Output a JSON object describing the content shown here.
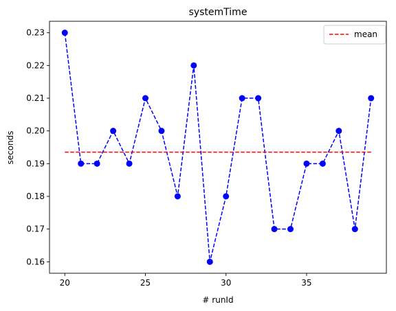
{
  "chart_data": {
    "type": "line",
    "title": "systemTime",
    "xlabel": "# runId",
    "ylabel": "seconds",
    "xlim": [
      19.05,
      39.95
    ],
    "ylim": [
      0.1565,
      0.2335
    ],
    "xticks": [
      20,
      25,
      30,
      35
    ],
    "xtick_labels": [
      "20",
      "25",
      "30",
      "35"
    ],
    "yticks": [
      0.16,
      0.17,
      0.18,
      0.19,
      0.2,
      0.21,
      0.22,
      0.23
    ],
    "ytick_labels": [
      "0.16",
      "0.17",
      "0.18",
      "0.19",
      "0.20",
      "0.21",
      "0.22",
      "0.23"
    ],
    "grid": false,
    "legend": {
      "placement": "top-right",
      "entries": [
        "mean"
      ]
    },
    "series": [
      {
        "name": "",
        "color": "#0000ff",
        "linestyle": "dashed",
        "marker": "circle",
        "x": [
          20,
          21,
          22,
          23,
          24,
          25,
          26,
          27,
          28,
          29,
          30,
          31,
          32,
          33,
          34,
          35,
          36,
          37,
          38,
          39
        ],
        "y": [
          0.23,
          0.19,
          0.19,
          0.2,
          0.19,
          0.21,
          0.2,
          0.18,
          0.22,
          0.16,
          0.18,
          0.21,
          0.21,
          0.17,
          0.17,
          0.19,
          0.19,
          0.2,
          0.17,
          0.21
        ]
      },
      {
        "name": "mean",
        "color": "#ff0000",
        "linestyle": "dashed",
        "marker": "none",
        "x": [
          20,
          39
        ],
        "y": [
          0.1935,
          0.1935
        ]
      }
    ]
  }
}
